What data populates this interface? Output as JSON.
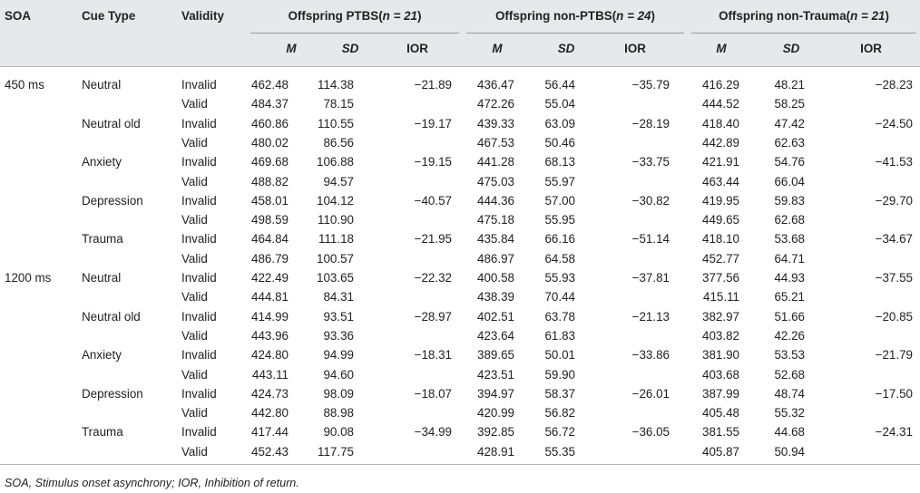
{
  "header": {
    "soa": "SOA",
    "cue_type": "Cue Type",
    "validity": "Validity",
    "groups": [
      {
        "name": "Offspring PTBS(",
        "n": "n = 21",
        "close": ")"
      },
      {
        "name": "Offspring non-PTBS(",
        "n": "n = 24",
        "close": ")"
      },
      {
        "name": "Offspring non-Trauma(",
        "n": "n = 21",
        "close": ")"
      }
    ],
    "sub": {
      "m": "M",
      "sd": "SD",
      "ior": "IOR"
    }
  },
  "rows": [
    {
      "soa": "450 ms",
      "cue": "Neutral",
      "validity": "Invalid",
      "g1": [
        "462.48",
        "114.38",
        "−21.89"
      ],
      "g2": [
        "436.47",
        "56.44",
        "−35.79"
      ],
      "g3": [
        "416.29",
        "48.21",
        "−28.23"
      ]
    },
    {
      "soa": "",
      "cue": "",
      "validity": "Valid",
      "g1": [
        "484.37",
        "78.15",
        ""
      ],
      "g2": [
        "472.26",
        "55.04",
        ""
      ],
      "g3": [
        "444.52",
        "58.25",
        ""
      ]
    },
    {
      "soa": "",
      "cue": "Neutral old",
      "validity": "Invalid",
      "g1": [
        "460.86",
        "110.55",
        "−19.17"
      ],
      "g2": [
        "439.33",
        "63.09",
        "−28.19"
      ],
      "g3": [
        "418.40",
        "47.42",
        "−24.50"
      ]
    },
    {
      "soa": "",
      "cue": "",
      "validity": "Valid",
      "g1": [
        "480.02",
        "86.56",
        ""
      ],
      "g2": [
        "467.53",
        "50.46",
        ""
      ],
      "g3": [
        "442.89",
        "62.63",
        ""
      ]
    },
    {
      "soa": "",
      "cue": "Anxiety",
      "validity": "Invalid",
      "g1": [
        "469.68",
        "106.88",
        "−19.15"
      ],
      "g2": [
        "441.28",
        "68.13",
        "−33.75"
      ],
      "g3": [
        "421.91",
        "54.76",
        "−41.53"
      ]
    },
    {
      "soa": "",
      "cue": "",
      "validity": "Valid",
      "g1": [
        "488.82",
        "94.57",
        ""
      ],
      "g2": [
        "475.03",
        "55.97",
        ""
      ],
      "g3": [
        "463.44",
        "66.04",
        ""
      ]
    },
    {
      "soa": "",
      "cue": "Depression",
      "validity": "Invalid",
      "g1": [
        "458.01",
        "104.12",
        "−40.57"
      ],
      "g2": [
        "444.36",
        "57.00",
        "−30.82"
      ],
      "g3": [
        "419.95",
        "59.83",
        "−29.70"
      ]
    },
    {
      "soa": "",
      "cue": "",
      "validity": "Valid",
      "g1": [
        "498.59",
        "110.90",
        ""
      ],
      "g2": [
        "475.18",
        "55.95",
        ""
      ],
      "g3": [
        "449.65",
        "62.68",
        ""
      ]
    },
    {
      "soa": "",
      "cue": "Trauma",
      "validity": "Invalid",
      "g1": [
        "464.84",
        "111.18",
        "−21.95"
      ],
      "g2": [
        "435.84",
        "66.16",
        "−51.14"
      ],
      "g3": [
        "418.10",
        "53.68",
        "−34.67"
      ]
    },
    {
      "soa": "",
      "cue": "",
      "validity": "Valid",
      "g1": [
        "486.79",
        "100.57",
        ""
      ],
      "g2": [
        "486.97",
        "64.58",
        ""
      ],
      "g3": [
        "452.77",
        "64.71",
        ""
      ]
    },
    {
      "soa": "1200 ms",
      "cue": "Neutral",
      "validity": "Invalid",
      "g1": [
        "422.49",
        "103.65",
        "−22.32"
      ],
      "g2": [
        "400.58",
        "55.93",
        "−37.81"
      ],
      "g3": [
        "377.56",
        "44.93",
        "−37.55"
      ]
    },
    {
      "soa": "",
      "cue": "",
      "validity": "Valid",
      "g1": [
        "444.81",
        "84.31",
        ""
      ],
      "g2": [
        "438.39",
        "70.44",
        ""
      ],
      "g3": [
        "415.11",
        "65.21",
        ""
      ]
    },
    {
      "soa": "",
      "cue": "Neutral old",
      "validity": "Invalid",
      "g1": [
        "414.99",
        "93.51",
        "−28.97"
      ],
      "g2": [
        "402.51",
        "63.78",
        "−21.13"
      ],
      "g3": [
        "382.97",
        "51.66",
        "−20.85"
      ]
    },
    {
      "soa": "",
      "cue": "",
      "validity": "Valid",
      "g1": [
        "443.96",
        "93.36",
        ""
      ],
      "g2": [
        "423.64",
        "61.83",
        ""
      ],
      "g3": [
        "403.82",
        "42.26",
        ""
      ]
    },
    {
      "soa": "",
      "cue": "Anxiety",
      "validity": "Invalid",
      "g1": [
        "424.80",
        "94.99",
        "−18.31"
      ],
      "g2": [
        "389.65",
        "50.01",
        "−33.86"
      ],
      "g3": [
        "381.90",
        "53.53",
        "−21.79"
      ]
    },
    {
      "soa": "",
      "cue": "",
      "validity": "Valid",
      "g1": [
        "443.11",
        "94.60",
        ""
      ],
      "g2": [
        "423.51",
        "59.90",
        ""
      ],
      "g3": [
        "403.68",
        "52.68",
        ""
      ]
    },
    {
      "soa": "",
      "cue": "Depression",
      "validity": "Invalid",
      "g1": [
        "424.73",
        "98.09",
        "−18.07"
      ],
      "g2": [
        "394.97",
        "58.37",
        "−26.01"
      ],
      "g3": [
        "387.99",
        "48.74",
        "−17.50"
      ]
    },
    {
      "soa": "",
      "cue": "",
      "validity": "Valid",
      "g1": [
        "442.80",
        "88.98",
        ""
      ],
      "g2": [
        "420.99",
        "56.82",
        ""
      ],
      "g3": [
        "405.48",
        "55.32",
        ""
      ]
    },
    {
      "soa": "",
      "cue": "Trauma",
      "validity": "Invalid",
      "g1": [
        "417.44",
        "90.08",
        "−34.99"
      ],
      "g2": [
        "392.85",
        "56.72",
        "−36.05"
      ],
      "g3": [
        "381.55",
        "44.68",
        "−24.31"
      ]
    },
    {
      "soa": "",
      "cue": "",
      "validity": "Valid",
      "g1": [
        "452.43",
        "117.75",
        ""
      ],
      "g2": [
        "428.91",
        "55.35",
        ""
      ],
      "g3": [
        "405.87",
        "50.94",
        ""
      ]
    }
  ],
  "footnote": "SOA, Stimulus onset asynchrony; IOR, Inhibition of return."
}
